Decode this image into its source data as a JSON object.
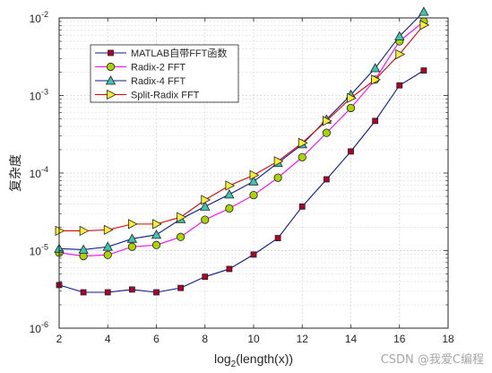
{
  "chart_data": {
    "type": "line",
    "xlabel": "log2(length(x))",
    "xlabel_base": "log",
    "xlabel_sub": "2",
    "xlabel_arg": "(length(x))",
    "ylabel": "复杂度",
    "xlim": [
      2,
      18
    ],
    "ylim": [
      1e-06,
      0.01
    ],
    "yscale": "log",
    "xticks": [
      "2",
      "4",
      "6",
      "8",
      "10",
      "12",
      "14",
      "16",
      "18"
    ],
    "yticks": [
      {
        "base": "10",
        "exp": "-6"
      },
      {
        "base": "10",
        "exp": "-5"
      },
      {
        "base": "10",
        "exp": "-4"
      },
      {
        "base": "10",
        "exp": "-3"
      },
      {
        "base": "10",
        "exp": "-2"
      }
    ],
    "grid": true,
    "legend_position": "top-left",
    "x": [
      2,
      3,
      4,
      5,
      6,
      7,
      8,
      9,
      10,
      11,
      12,
      13,
      14,
      15,
      16,
      17
    ],
    "series": [
      {
        "name": "MATLAB自带FFT函数",
        "color": "#0b1a8c",
        "marker": "square",
        "marker_fill": "#b0002a",
        "values": [
          3.6e-06,
          2.9e-06,
          2.9e-06,
          3.15e-06,
          2.9e-06,
          3.3e-06,
          4.6e-06,
          5.8e-06,
          8.9e-06,
          1.45e-05,
          3.7e-05,
          8.3e-05,
          0.00019,
          0.00047,
          0.00135,
          0.0021
        ]
      },
      {
        "name": "Radix-2 FFT",
        "color": "#ff00ff",
        "marker": "circle",
        "marker_fill": "#a8d400",
        "values": [
          9.4e-06,
          8.5e-06,
          8.8e-06,
          1.12e-05,
          1.18e-05,
          1.5e-05,
          2.5e-05,
          3.5e-05,
          5.2e-05,
          8.7e-05,
          0.00016,
          0.00033,
          0.00069,
          0.0016,
          0.005,
          0.009
        ]
      },
      {
        "name": "Radix-4 FFT",
        "color": "#0b1a8c",
        "marker": "triangle",
        "marker_fill": "#3fc4b0",
        "values": [
          1.06e-05,
          1.03e-05,
          1.12e-05,
          1.42e-05,
          1.6e-05,
          2.55e-05,
          3.7e-05,
          5.3e-05,
          7.8e-05,
          0.000135,
          0.000235,
          0.00049,
          0.00102,
          0.00225,
          0.0058,
          0.012
        ]
      },
      {
        "name": "Split-Radix FFT",
        "color": "#e00000",
        "marker": "triangle-right",
        "marker_fill": "#ffee33",
        "values": [
          1.8e-05,
          1.8e-05,
          1.85e-05,
          2.2e-05,
          2.2e-05,
          2.7e-05,
          4.5e-05,
          6.9e-05,
          9.4e-05,
          0.000142,
          0.000245,
          0.00047,
          0.00093,
          0.0016,
          0.0034,
          0.0081
        ]
      }
    ]
  },
  "watermark": "CSDN @我爱C编程"
}
